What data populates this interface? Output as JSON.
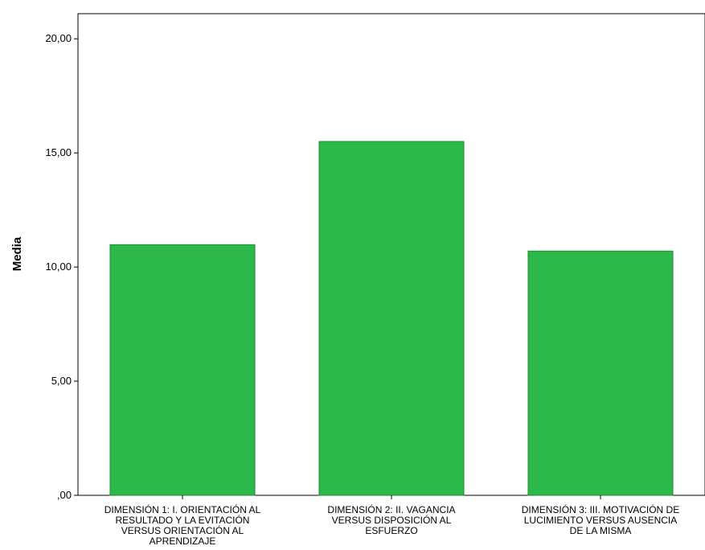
{
  "chart_data": {
    "type": "bar",
    "categories": [
      [
        "DIMENSIÓN 1: I. ORIENTACIÓN AL",
        "RESULTADO Y LA EVITACIÓN",
        "VERSUS ORIENTACIÓN AL",
        "APRENDIZAJE"
      ],
      [
        "DIMENSIÓN 2: II. VAGANCIA",
        "VERSUS DISPOSICIÓN AL",
        "ESFUERZO"
      ],
      [
        "DIMENSIÓN 3: III. MOTIVACIÓN DE",
        "LUCIMIENTO VERSUS AUSENCIA",
        "DE LA MISMA"
      ]
    ],
    "values": [
      10.98,
      15.5,
      10.7
    ],
    "xlabel": "",
    "ylabel": "Media",
    "ylim": [
      0,
      21.1
    ],
    "yticks": [
      0,
      5,
      10,
      15,
      20
    ],
    "ytick_labels": [
      ",00",
      "5,00",
      "10,00",
      "15,00",
      "20,00"
    ],
    "grid": false,
    "legend": "none",
    "bar_color": "#2db84a",
    "bar_edge_color": "#1f8a36"
  }
}
